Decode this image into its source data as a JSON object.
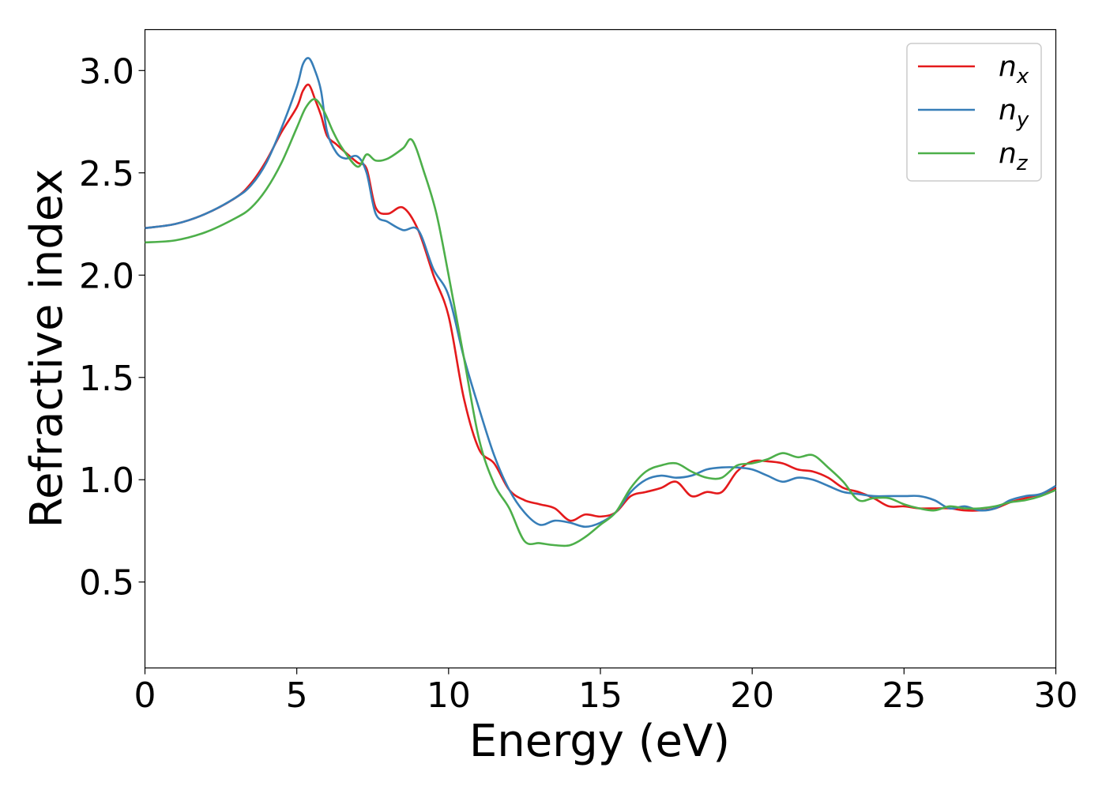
{
  "chart_data": {
    "type": "line",
    "xlabel": "Energy (eV)",
    "ylabel": "Refractive index",
    "xlim": [
      0,
      30
    ],
    "ylim": [
      0.08,
      3.2
    ],
    "xticks": [
      0,
      5,
      10,
      15,
      20,
      25,
      30
    ],
    "xtick_labels": [
      "0",
      "5",
      "10",
      "15",
      "20",
      "25",
      "30"
    ],
    "yticks": [
      0.5,
      1.0,
      1.5,
      2.0,
      2.5,
      3.0
    ],
    "ytick_labels": [
      "0.5",
      "1.0",
      "1.5",
      "2.0",
      "2.5",
      "3.0"
    ],
    "grid": false,
    "legend_position": "top-right",
    "series": [
      {
        "name": "n",
        "subscript": "x",
        "color": "#e41a1c",
        "x": [
          0,
          1,
          2,
          3,
          3.5,
          4,
          4.5,
          5,
          5.2,
          5.4,
          5.6,
          5.8,
          6,
          6.3,
          6.6,
          7,
          7.3,
          7.6,
          8,
          8.5,
          9,
          9.5,
          10,
          10.5,
          11,
          11.5,
          12,
          12.5,
          13,
          13.5,
          14,
          14.5,
          15,
          15.5,
          16,
          16.5,
          17,
          17.5,
          18,
          18.5,
          19,
          19.5,
          20,
          20.5,
          21,
          21.5,
          22,
          22.5,
          23,
          23.5,
          24,
          24.5,
          25,
          25.5,
          26,
          26.5,
          27,
          27.5,
          28,
          28.5,
          29,
          29.5,
          30
        ],
        "y": [
          2.23,
          2.25,
          2.3,
          2.38,
          2.45,
          2.56,
          2.7,
          2.82,
          2.9,
          2.93,
          2.86,
          2.78,
          2.68,
          2.64,
          2.6,
          2.55,
          2.52,
          2.33,
          2.3,
          2.33,
          2.22,
          2.0,
          1.8,
          1.4,
          1.15,
          1.08,
          0.95,
          0.9,
          0.88,
          0.86,
          0.8,
          0.83,
          0.82,
          0.84,
          0.92,
          0.94,
          0.96,
          0.99,
          0.92,
          0.94,
          0.94,
          1.04,
          1.09,
          1.09,
          1.08,
          1.05,
          1.04,
          1.01,
          0.96,
          0.94,
          0.91,
          0.87,
          0.87,
          0.86,
          0.86,
          0.86,
          0.85,
          0.85,
          0.86,
          0.89,
          0.91,
          0.93,
          0.96
        ]
      },
      {
        "name": "n",
        "subscript": "y",
        "color": "#377eb8",
        "x": [
          0,
          1,
          2,
          3,
          3.5,
          4,
          4.5,
          5,
          5.2,
          5.4,
          5.6,
          5.8,
          6,
          6.3,
          6.6,
          7,
          7.3,
          7.6,
          8,
          8.5,
          9,
          9.5,
          10,
          10.5,
          11,
          11.5,
          12,
          12.5,
          13,
          13.5,
          14,
          14.5,
          15,
          15.5,
          16,
          16.5,
          17,
          17.5,
          18,
          18.5,
          19,
          19.5,
          20,
          20.5,
          21,
          21.5,
          22,
          22.5,
          23,
          23.5,
          24,
          24.5,
          25,
          25.5,
          26,
          26.5,
          27,
          27.5,
          28,
          28.5,
          29,
          29.5,
          30
        ],
        "y": [
          2.23,
          2.25,
          2.3,
          2.38,
          2.44,
          2.55,
          2.72,
          2.92,
          3.03,
          3.06,
          3.0,
          2.9,
          2.7,
          2.6,
          2.57,
          2.58,
          2.5,
          2.3,
          2.26,
          2.22,
          2.22,
          2.03,
          1.9,
          1.6,
          1.35,
          1.12,
          0.95,
          0.84,
          0.78,
          0.8,
          0.79,
          0.77,
          0.79,
          0.84,
          0.94,
          1.0,
          1.02,
          1.01,
          1.02,
          1.05,
          1.06,
          1.06,
          1.05,
          1.02,
          0.99,
          1.01,
          1.0,
          0.97,
          0.94,
          0.93,
          0.92,
          0.92,
          0.92,
          0.92,
          0.9,
          0.86,
          0.87,
          0.85,
          0.86,
          0.9,
          0.92,
          0.93,
          0.97
        ]
      },
      {
        "name": "n",
        "subscript": "z",
        "color": "#4daf4a",
        "x": [
          0,
          1,
          2,
          3,
          3.5,
          4,
          4.5,
          5,
          5.3,
          5.6,
          5.9,
          6.2,
          6.5,
          7,
          7.3,
          7.6,
          8,
          8.5,
          8.8,
          9.2,
          9.6,
          10,
          10.5,
          11,
          11.5,
          12,
          12.5,
          13,
          13.5,
          14,
          14.5,
          15,
          15.5,
          16,
          16.5,
          17,
          17.5,
          18,
          18.5,
          19,
          19.5,
          20,
          20.5,
          21,
          21.5,
          22,
          22.5,
          23,
          23.5,
          24,
          24.5,
          25,
          25.5,
          26,
          26.5,
          27,
          27.5,
          28,
          28.5,
          29,
          29.5,
          30
        ],
        "y": [
          2.16,
          2.17,
          2.21,
          2.28,
          2.33,
          2.42,
          2.55,
          2.72,
          2.82,
          2.86,
          2.8,
          2.7,
          2.62,
          2.53,
          2.59,
          2.56,
          2.57,
          2.62,
          2.66,
          2.5,
          2.3,
          2.0,
          1.6,
          1.2,
          0.98,
          0.86,
          0.7,
          0.69,
          0.68,
          0.68,
          0.72,
          0.78,
          0.84,
          0.96,
          1.04,
          1.07,
          1.08,
          1.04,
          1.01,
          1.01,
          1.07,
          1.08,
          1.1,
          1.13,
          1.11,
          1.12,
          1.06,
          0.99,
          0.9,
          0.91,
          0.91,
          0.88,
          0.86,
          0.85,
          0.87,
          0.86,
          0.86,
          0.87,
          0.89,
          0.9,
          0.92,
          0.95
        ]
      }
    ]
  }
}
